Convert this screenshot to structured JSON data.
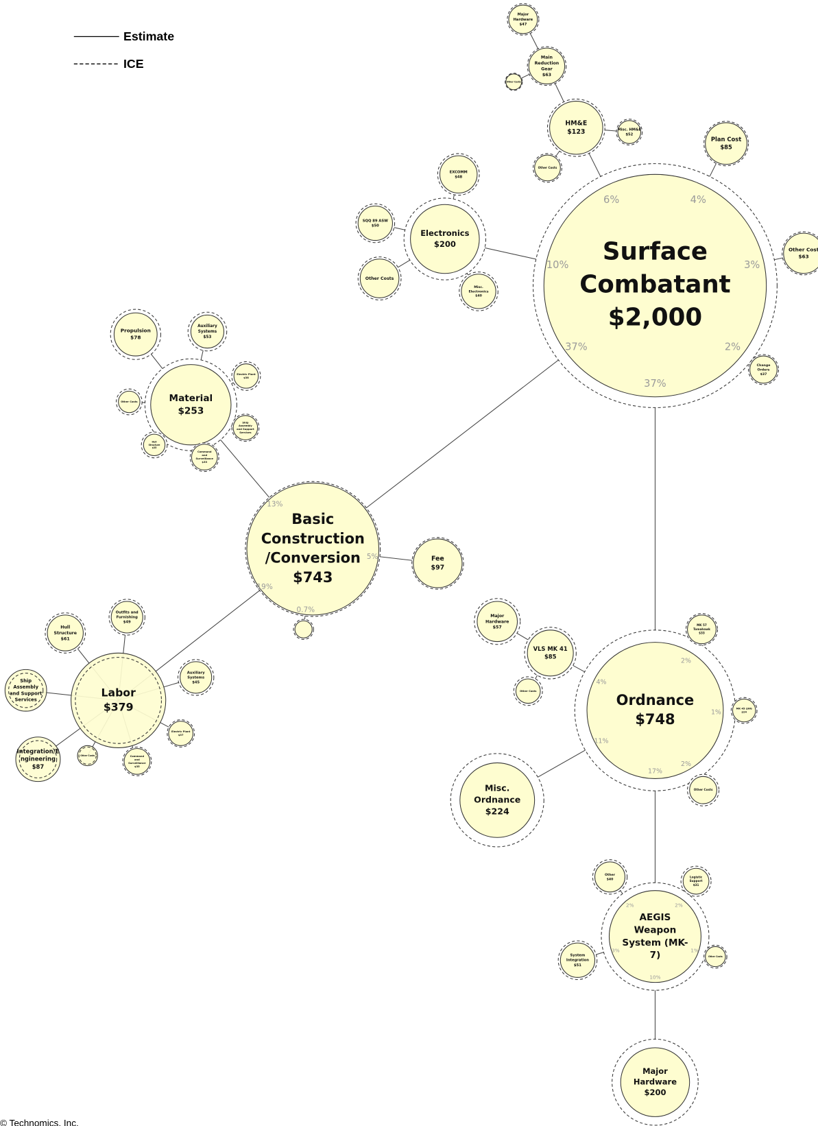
{
  "legend": [
    "Estimate",
    "ICE"
  ],
  "copyright": "© Technomics, Inc.",
  "nodes": [
    {
      "lines": [
        "Surface",
        "Combatant",
        "$2,000"
      ]
    },
    {
      "lines": [
        "HM&E",
        "$123"
      ]
    },
    {
      "lines": [
        "Main",
        "Reduction",
        "Gear",
        "$63"
      ]
    },
    {
      "lines": [
        "Major",
        "Hardware",
        "$47"
      ]
    },
    {
      "lines": [
        "Other Costs"
      ]
    },
    {
      "lines": [
        "Misc. HM&E",
        "$52"
      ]
    },
    {
      "lines": [
        "Other Costs"
      ]
    },
    {
      "lines": [
        "Plan Cost",
        "$85"
      ]
    },
    {
      "lines": [
        "Other Cost",
        "$63"
      ]
    },
    {
      "lines": [
        "Change",
        "Orders",
        "$37"
      ]
    },
    {
      "lines": [
        "Electronics",
        "$200"
      ]
    },
    {
      "lines": [
        "EXCOMM",
        "$48"
      ]
    },
    {
      "lines": [
        "SQQ 89 ASW",
        "$50"
      ]
    },
    {
      "lines": [
        "Other Costs"
      ]
    },
    {
      "lines": [
        "Misc.",
        "Electronics",
        "$40"
      ]
    },
    {
      "lines": [
        "Basic",
        "Construction",
        "/Conversion",
        "$743"
      ]
    },
    {
      "lines": [
        "Material",
        "$253"
      ]
    },
    {
      "lines": [
        "Propulsion",
        "$78"
      ]
    },
    {
      "lines": [
        "Auxiliary",
        "Systems",
        "$53"
      ]
    },
    {
      "lines": [
        "Electric Plant",
        "$38"
      ]
    },
    {
      "lines": [
        "Other Costs"
      ]
    },
    {
      "lines": [
        "Ship",
        "Assembly",
        "and Support",
        "Services"
      ]
    },
    {
      "lines": [
        "Hull",
        "Structure",
        "$35"
      ]
    },
    {
      "lines": [
        "Command",
        "and",
        "Surveillance",
        "$33"
      ]
    },
    {
      "lines": [
        "Fee",
        "$97"
      ]
    },
    {
      "lines": []
    },
    {
      "lines": [
        "Labor",
        "$379"
      ]
    },
    {
      "lines": [
        "Hull",
        "Structure",
        "$61"
      ]
    },
    {
      "lines": [
        "Outfits and",
        "Furnishing",
        "$49"
      ]
    },
    {
      "lines": [
        "Auxiliary",
        "Systems",
        "$45"
      ]
    },
    {
      "lines": [
        "Ship",
        "Assembly",
        "and Support",
        "Services"
      ]
    },
    {
      "lines": [
        "Electric Plant",
        "$37"
      ]
    },
    {
      "lines": [
        "Integration/E",
        "ngineering",
        "$87"
      ]
    },
    {
      "lines": [
        "Other Costs"
      ]
    },
    {
      "lines": [
        "Command",
        "and",
        "Surveillance",
        "$35"
      ]
    },
    {
      "lines": [
        "Ordnance",
        "$748"
      ]
    },
    {
      "lines": [
        "VLS MK 41",
        "$85"
      ]
    },
    {
      "lines": [
        "Major",
        "Hardware",
        "$57"
      ]
    },
    {
      "lines": [
        "Other Costs"
      ]
    },
    {
      "lines": [
        "MK 57",
        "Tomahawk",
        "$33"
      ]
    },
    {
      "lines": [
        "MK 45 LWG",
        "$24"
      ]
    },
    {
      "lines": [
        "Other Costs"
      ]
    },
    {
      "lines": [
        "Misc.",
        "Ordnance",
        "$224"
      ]
    },
    {
      "lines": [
        "AEGIS",
        "Weapon",
        "System (MK-",
        "7)"
      ]
    },
    {
      "lines": [
        "Other",
        "$40"
      ]
    },
    {
      "lines": [
        "Logistic",
        "Support",
        "$31"
      ]
    },
    {
      "lines": [
        "System",
        "Integration",
        "$51"
      ]
    },
    {
      "lines": [
        "Other Costs"
      ]
    },
    {
      "lines": [
        "Major",
        "Hardware",
        "$200"
      ]
    }
  ],
  "percents": [
    "6%",
    "4%",
    "3%",
    "2%",
    "37%",
    "37%",
    "10%",
    "13%",
    "5%",
    "19%",
    "0.7%",
    "4%",
    "2%",
    "1%",
    "2%",
    "11%",
    "17%",
    "2%",
    "2%",
    "3%",
    "1%",
    "10%"
  ]
}
